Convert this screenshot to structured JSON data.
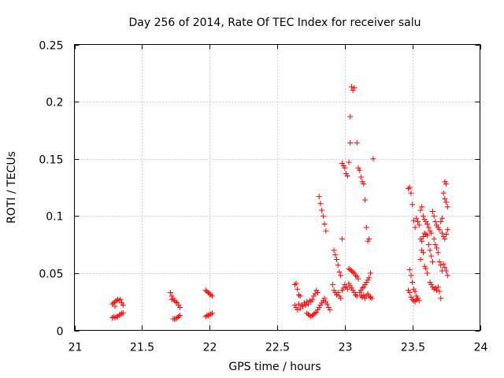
{
  "chart_data": {
    "type": "scatter",
    "title": "Day 256 of 2014, Rate Of TEC Index for receiver salu",
    "xlabel": "GPS time / hours",
    "ylabel": "ROTI / TECUs",
    "xlim": [
      21,
      24
    ],
    "ylim": [
      0,
      0.25
    ],
    "grid": true,
    "marker": "+",
    "color": "#ff0000",
    "x_ticks": [
      21,
      21.5,
      22,
      22.5,
      23,
      23.5,
      24
    ],
    "x_tick_labels": [
      "21",
      "21.5",
      "22",
      "22.5",
      "23",
      "23.5",
      "24"
    ],
    "y_ticks": [
      0,
      0.05,
      0.1,
      0.15,
      0.2,
      0.25
    ],
    "y_tick_labels": [
      "0",
      "0.05",
      "0.1",
      "0.15",
      "0.2",
      "0.25"
    ],
    "series": [
      {
        "name": "ROTI",
        "points": [
          [
            21.28,
            0.023
          ],
          [
            21.29,
            0.024
          ],
          [
            21.3,
            0.025
          ],
          [
            21.31,
            0.026
          ],
          [
            21.32,
            0.027
          ],
          [
            21.33,
            0.026
          ],
          [
            21.34,
            0.027
          ],
          [
            21.35,
            0.024
          ],
          [
            21.36,
            0.022
          ],
          [
            21.3,
            0.021
          ],
          [
            21.28,
            0.011
          ],
          [
            21.29,
            0.012
          ],
          [
            21.3,
            0.011
          ],
          [
            21.31,
            0.012
          ],
          [
            21.32,
            0.012
          ],
          [
            21.33,
            0.013
          ],
          [
            21.34,
            0.014
          ],
          [
            21.35,
            0.015
          ],
          [
            21.36,
            0.015
          ],
          [
            21.71,
            0.033
          ],
          [
            21.72,
            0.03
          ],
          [
            21.73,
            0.028
          ],
          [
            21.74,
            0.026
          ],
          [
            21.75,
            0.025
          ],
          [
            21.76,
            0.024
          ],
          [
            21.77,
            0.022
          ],
          [
            21.78,
            0.02
          ],
          [
            21.72,
            0.027
          ],
          [
            21.73,
            0.01
          ],
          [
            21.74,
            0.01
          ],
          [
            21.75,
            0.01
          ],
          [
            21.76,
            0.011
          ],
          [
            21.77,
            0.012
          ],
          [
            21.78,
            0.013
          ],
          [
            21.97,
            0.035
          ],
          [
            21.98,
            0.034
          ],
          [
            21.99,
            0.033
          ],
          [
            22.0,
            0.032
          ],
          [
            22.01,
            0.031
          ],
          [
            22.02,
            0.03
          ],
          [
            21.97,
            0.012
          ],
          [
            21.98,
            0.013
          ],
          [
            21.99,
            0.013
          ],
          [
            22.0,
            0.014
          ],
          [
            22.01,
            0.014
          ],
          [
            22.02,
            0.015
          ],
          [
            22.63,
            0.04
          ],
          [
            22.64,
            0.041
          ],
          [
            22.65,
            0.036
          ],
          [
            22.66,
            0.031
          ],
          [
            22.67,
            0.03
          ],
          [
            22.63,
            0.022
          ],
          [
            22.64,
            0.02
          ],
          [
            22.65,
            0.018
          ],
          [
            22.66,
            0.023
          ],
          [
            22.67,
            0.019
          ],
          [
            22.68,
            0.022
          ],
          [
            22.69,
            0.021
          ],
          [
            22.7,
            0.024
          ],
          [
            22.71,
            0.022
          ],
          [
            22.72,
            0.025
          ],
          [
            22.73,
            0.023
          ],
          [
            22.74,
            0.026
          ],
          [
            22.75,
            0.025
          ],
          [
            22.76,
            0.027
          ],
          [
            22.77,
            0.03
          ],
          [
            22.78,
            0.032
          ],
          [
            22.79,
            0.035
          ],
          [
            22.8,
            0.033
          ],
          [
            22.72,
            0.015
          ],
          [
            22.73,
            0.014
          ],
          [
            22.74,
            0.013
          ],
          [
            22.75,
            0.012
          ],
          [
            22.76,
            0.013
          ],
          [
            22.77,
            0.014
          ],
          [
            22.78,
            0.015
          ],
          [
            22.79,
            0.016
          ],
          [
            22.8,
            0.018
          ],
          [
            22.81,
            0.02
          ],
          [
            22.82,
            0.022
          ],
          [
            22.83,
            0.024
          ],
          [
            22.84,
            0.026
          ],
          [
            22.85,
            0.028
          ],
          [
            22.86,
            0.025
          ],
          [
            22.87,
            0.023
          ],
          [
            22.88,
            0.02
          ],
          [
            22.89,
            0.018
          ],
          [
            22.81,
            0.117
          ],
          [
            22.82,
            0.111
          ],
          [
            22.83,
            0.105
          ],
          [
            22.84,
            0.1
          ],
          [
            22.85,
            0.093
          ],
          [
            22.86,
            0.087
          ],
          [
            22.92,
            0.07
          ],
          [
            22.93,
            0.066
          ],
          [
            22.94,
            0.062
          ],
          [
            22.95,
            0.057
          ],
          [
            22.96,
            0.051
          ],
          [
            22.97,
            0.048
          ],
          [
            22.98,
            0.08
          ],
          [
            22.91,
            0.04
          ],
          [
            22.92,
            0.035
          ],
          [
            22.93,
            0.033
          ],
          [
            22.94,
            0.031
          ],
          [
            22.95,
            0.033
          ],
          [
            22.96,
            0.03
          ],
          [
            22.97,
            0.028
          ],
          [
            22.98,
            0.035
          ],
          [
            22.99,
            0.037
          ],
          [
            22.98,
            0.146
          ],
          [
            22.99,
            0.144
          ],
          [
            23.0,
            0.142
          ],
          [
            23.01,
            0.137
          ],
          [
            23.02,
            0.135
          ],
          [
            23.03,
            0.147
          ],
          [
            23.05,
            0.213
          ],
          [
            23.06,
            0.21
          ],
          [
            23.07,
            0.212
          ],
          [
            23.04,
            0.187
          ],
          [
            23.04,
            0.164
          ],
          [
            23.09,
            0.164
          ],
          [
            23.03,
            0.054
          ],
          [
            23.04,
            0.053
          ],
          [
            23.05,
            0.052
          ],
          [
            23.06,
            0.051
          ],
          [
            23.07,
            0.05
          ],
          [
            23.08,
            0.048
          ],
          [
            23.09,
            0.047
          ],
          [
            23.1,
            0.045
          ],
          [
            23.0,
            0.04
          ],
          [
            23.01,
            0.038
          ],
          [
            23.02,
            0.036
          ],
          [
            23.03,
            0.041
          ],
          [
            23.04,
            0.039
          ],
          [
            23.05,
            0.037
          ],
          [
            23.06,
            0.035
          ],
          [
            23.07,
            0.033
          ],
          [
            23.08,
            0.031
          ],
          [
            23.09,
            0.03
          ],
          [
            23.1,
            0.142
          ],
          [
            23.11,
            0.14
          ],
          [
            23.12,
            0.134
          ],
          [
            23.13,
            0.13
          ],
          [
            23.14,
            0.128
          ],
          [
            23.15,
            0.114
          ],
          [
            23.16,
            0.09
          ],
          [
            23.17,
            0.078
          ],
          [
            23.18,
            0.08
          ],
          [
            23.21,
            0.15
          ],
          [
            23.11,
            0.033
          ],
          [
            23.12,
            0.035
          ],
          [
            23.13,
            0.037
          ],
          [
            23.14,
            0.038
          ],
          [
            23.15,
            0.04
          ],
          [
            23.16,
            0.042
          ],
          [
            23.17,
            0.044
          ],
          [
            23.18,
            0.046
          ],
          [
            23.19,
            0.05
          ],
          [
            23.12,
            0.03
          ],
          [
            23.13,
            0.029
          ],
          [
            23.14,
            0.031
          ],
          [
            23.15,
            0.028
          ],
          [
            23.16,
            0.03
          ],
          [
            23.17,
            0.032
          ],
          [
            23.18,
            0.03
          ],
          [
            23.19,
            0.029
          ],
          [
            23.2,
            0.028
          ],
          [
            23.47,
            0.124
          ],
          [
            23.48,
            0.125
          ],
          [
            23.49,
            0.12
          ],
          [
            23.5,
            0.11
          ],
          [
            23.51,
            0.096
          ],
          [
            23.52,
            0.09
          ],
          [
            23.48,
            0.053
          ],
          [
            23.49,
            0.048
          ],
          [
            23.5,
            0.042
          ],
          [
            23.51,
            0.036
          ],
          [
            23.52,
            0.034
          ],
          [
            23.53,
            0.03
          ],
          [
            23.54,
            0.028
          ],
          [
            23.55,
            0.026
          ],
          [
            23.47,
            0.035
          ],
          [
            23.48,
            0.033
          ],
          [
            23.49,
            0.029
          ],
          [
            23.5,
            0.027
          ],
          [
            23.51,
            0.026
          ],
          [
            23.52,
            0.025
          ],
          [
            23.53,
            0.027
          ],
          [
            23.53,
            0.098
          ],
          [
            23.54,
            0.095
          ],
          [
            23.55,
            0.092
          ],
          [
            23.56,
            0.105
          ],
          [
            23.57,
            0.108
          ],
          [
            23.58,
            0.1
          ],
          [
            23.59,
            0.097
          ],
          [
            23.6,
            0.095
          ],
          [
            23.61,
            0.093
          ],
          [
            23.62,
            0.09
          ],
          [
            23.63,
            0.087
          ],
          [
            23.64,
            0.085
          ],
          [
            23.56,
            0.08
          ],
          [
            23.57,
            0.078
          ],
          [
            23.58,
            0.082
          ],
          [
            23.59,
            0.085
          ],
          [
            23.6,
            0.084
          ],
          [
            23.61,
            0.083
          ],
          [
            23.62,
            0.075
          ],
          [
            23.63,
            0.07
          ],
          [
            23.64,
            0.065
          ],
          [
            23.65,
            0.06
          ],
          [
            23.56,
            0.062
          ],
          [
            23.57,
            0.07
          ],
          [
            23.58,
            0.068
          ],
          [
            23.59,
            0.056
          ],
          [
            23.6,
            0.054
          ],
          [
            23.61,
            0.05
          ],
          [
            23.65,
            0.104
          ],
          [
            23.66,
            0.1
          ],
          [
            23.67,
            0.095
          ],
          [
            23.68,
            0.092
          ],
          [
            23.69,
            0.09
          ],
          [
            23.7,
            0.088
          ],
          [
            23.71,
            0.095
          ],
          [
            23.72,
            0.098
          ],
          [
            23.66,
            0.08
          ],
          [
            23.67,
            0.075
          ],
          [
            23.68,
            0.072
          ],
          [
            23.69,
            0.068
          ],
          [
            23.7,
            0.06
          ],
          [
            23.71,
            0.057
          ],
          [
            23.63,
            0.042
          ],
          [
            23.64,
            0.04
          ],
          [
            23.65,
            0.038
          ],
          [
            23.66,
            0.036
          ],
          [
            23.67,
            0.037
          ],
          [
            23.68,
            0.035
          ],
          [
            23.69,
            0.038
          ],
          [
            23.7,
            0.034
          ],
          [
            23.71,
            0.028
          ],
          [
            23.73,
            0.12
          ],
          [
            23.74,
            0.115
          ],
          [
            23.75,
            0.112
          ],
          [
            23.76,
            0.108
          ],
          [
            23.74,
            0.13
          ],
          [
            23.75,
            0.128
          ],
          [
            23.72,
            0.085
          ],
          [
            23.73,
            0.082
          ],
          [
            23.74,
            0.08
          ],
          [
            23.75,
            0.084
          ],
          [
            23.76,
            0.088
          ],
          [
            23.73,
            0.058
          ],
          [
            23.74,
            0.055
          ],
          [
            23.75,
            0.052
          ],
          [
            23.76,
            0.048
          ],
          [
            23.72,
            0.052
          ]
        ]
      }
    ]
  }
}
